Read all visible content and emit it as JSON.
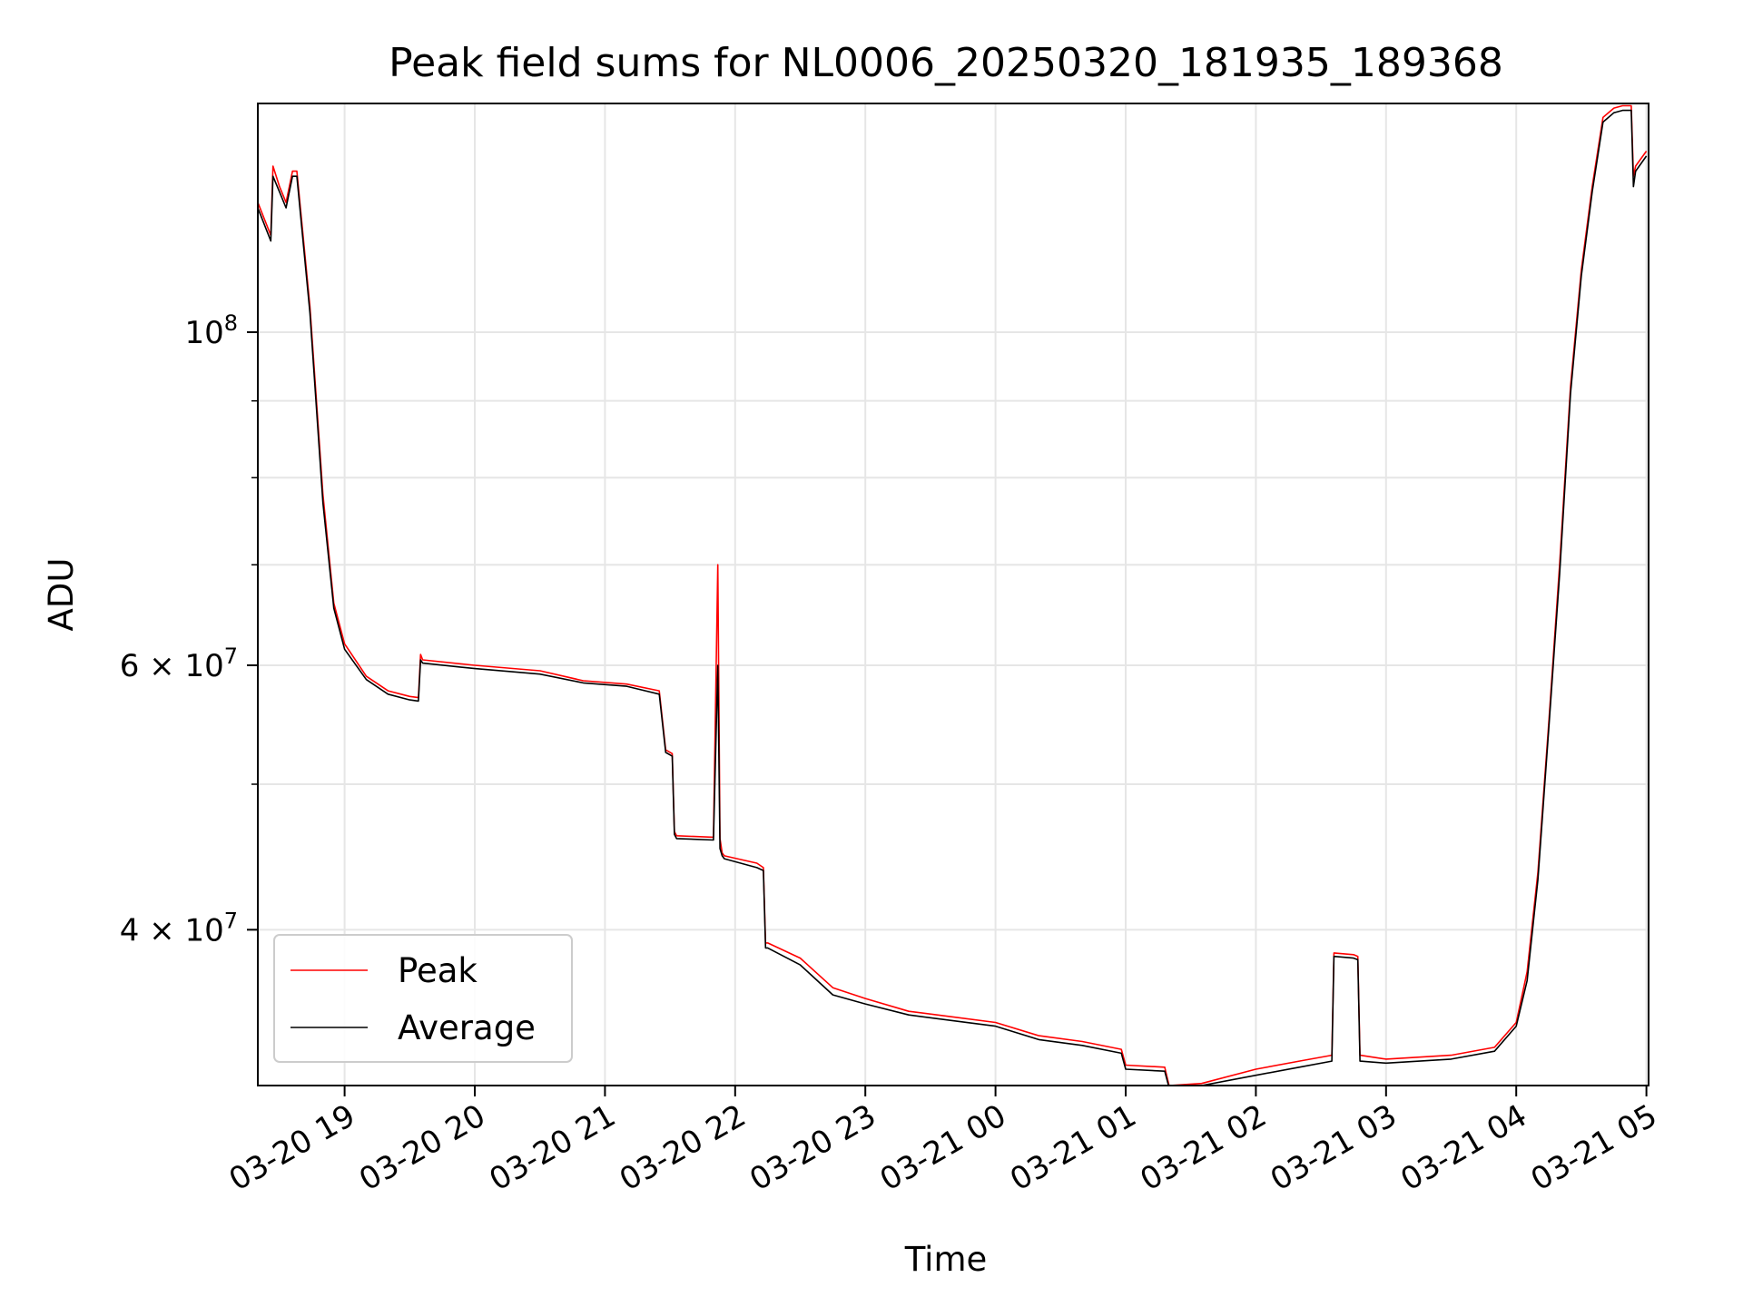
{
  "chart_data": {
    "type": "line",
    "title": "Peak field sums for NL0006_20250320_181935_189368",
    "xlabel": "Time",
    "ylabel": "ADU",
    "yscale": "log",
    "grid": true,
    "legend_position": "lower-left",
    "x_range": [
      "2025-03-20T18:20",
      "2025-03-21T05:01"
    ],
    "ylim": [
      31500000,
      142000000
    ],
    "x_ticks": [
      {
        "t": "2025-03-20T19:00",
        "label": "03-20 19"
      },
      {
        "t": "2025-03-20T20:00",
        "label": "03-20 20"
      },
      {
        "t": "2025-03-20T21:00",
        "label": "03-20 21"
      },
      {
        "t": "2025-03-20T22:00",
        "label": "03-20 22"
      },
      {
        "t": "2025-03-20T23:00",
        "label": "03-20 23"
      },
      {
        "t": "2025-03-21T00:00",
        "label": "03-21 00"
      },
      {
        "t": "2025-03-21T01:00",
        "label": "03-21 01"
      },
      {
        "t": "2025-03-21T02:00",
        "label": "03-21 02"
      },
      {
        "t": "2025-03-21T03:00",
        "label": "03-21 03"
      },
      {
        "t": "2025-03-21T04:00",
        "label": "03-21 04"
      },
      {
        "t": "2025-03-21T05:00",
        "label": "03-21 05"
      }
    ],
    "y_ticks_major": [
      {
        "value": 100000000,
        "base": "10",
        "exp": "8"
      },
      {
        "value": 60000000,
        "base": "6 × 10",
        "exp": "7"
      },
      {
        "value": 40000000,
        "base": "4 × 10",
        "exp": "7"
      }
    ],
    "y_ticks_minor": [
      90000000,
      80000000,
      70000000,
      50000000
    ],
    "colors": {
      "peak": "#ff0000",
      "average": "#000000",
      "grid": "#e6e6e6"
    },
    "series": [
      {
        "name": "Peak",
        "x": [
          "2025-03-20T18:20",
          "2025-03-20T18:26",
          "2025-03-20T18:27",
          "2025-03-20T18:30",
          "2025-03-20T18:33",
          "2025-03-20T18:36",
          "2025-03-20T18:38",
          "2025-03-20T18:44",
          "2025-03-20T18:50",
          "2025-03-20T18:55",
          "2025-03-20T19:00",
          "2025-03-20T19:10",
          "2025-03-20T19:20",
          "2025-03-20T19:30",
          "2025-03-20T19:34",
          "2025-03-20T19:35",
          "2025-03-20T19:36",
          "2025-03-20T20:00",
          "2025-03-20T20:30",
          "2025-03-20T20:50",
          "2025-03-20T21:10",
          "2025-03-20T21:25",
          "2025-03-20T21:28",
          "2025-03-20T21:31",
          "2025-03-20T21:32",
          "2025-03-20T21:33",
          "2025-03-20T21:50",
          "2025-03-20T21:52",
          "2025-03-20T21:53",
          "2025-03-20T21:54",
          "2025-03-20T21:55",
          "2025-03-20T22:10",
          "2025-03-20T22:13",
          "2025-03-20T22:14",
          "2025-03-20T22:15",
          "2025-03-20T22:30",
          "2025-03-20T22:45",
          "2025-03-20T23:00",
          "2025-03-20T23:20",
          "2025-03-20T23:40",
          "2025-03-21T00:00",
          "2025-03-21T00:20",
          "2025-03-21T00:40",
          "2025-03-21T00:58",
          "2025-03-21T01:00",
          "2025-03-21T01:18",
          "2025-03-21T01:20",
          "2025-03-21T01:35",
          "2025-03-21T02:00",
          "2025-03-21T02:20",
          "2025-03-21T02:35",
          "2025-03-21T02:36",
          "2025-03-21T02:45",
          "2025-03-21T02:47",
          "2025-03-21T02:48",
          "2025-03-21T03:00",
          "2025-03-21T03:30",
          "2025-03-21T03:50",
          "2025-03-21T04:00",
          "2025-03-21T04:05",
          "2025-03-21T04:10",
          "2025-03-21T04:15",
          "2025-03-21T04:20",
          "2025-03-21T04:25",
          "2025-03-21T04:30",
          "2025-03-21T04:35",
          "2025-03-21T04:40",
          "2025-03-21T04:45",
          "2025-03-21T04:49",
          "2025-03-21T04:53",
          "2025-03-21T04:54",
          "2025-03-21T04:55",
          "2025-03-21T05:00"
        ],
        "y": [
          122000000,
          116000000,
          129000000,
          125000000,
          122000000,
          128000000,
          128000000,
          104000000,
          78000000,
          66000000,
          62000000,
          59000000,
          57700000,
          57200000,
          57100000,
          61000000,
          60500000,
          60000000,
          59500000,
          58600000,
          58300000,
          57700000,
          52700000,
          52400000,
          46500000,
          46200000,
          46100000,
          70000000,
          46000000,
          45000000,
          44800000,
          44300000,
          44000000,
          39200000,
          39200000,
          38300000,
          36600000,
          36000000,
          35300000,
          35000000,
          34700000,
          34000000,
          33700000,
          33300000,
          32500000,
          32400000,
          31500000,
          31600000,
          32300000,
          32700000,
          33000000,
          38600000,
          38500000,
          38400000,
          33000000,
          32800000,
          33000000,
          33400000,
          34700000,
          37500000,
          43700000,
          55000000,
          70000000,
          92000000,
          110000000,
          125000000,
          139000000,
          141000000,
          141500000,
          141500000,
          127000000,
          129000000,
          132000000
        ]
      },
      {
        "name": "Average",
        "x": [
          "2025-03-20T18:20",
          "2025-03-20T18:26",
          "2025-03-20T18:27",
          "2025-03-20T18:30",
          "2025-03-20T18:33",
          "2025-03-20T18:36",
          "2025-03-20T18:38",
          "2025-03-20T18:44",
          "2025-03-20T18:50",
          "2025-03-20T18:55",
          "2025-03-20T19:00",
          "2025-03-20T19:10",
          "2025-03-20T19:20",
          "2025-03-20T19:30",
          "2025-03-20T19:34",
          "2025-03-20T19:35",
          "2025-03-20T19:36",
          "2025-03-20T20:00",
          "2025-03-20T20:30",
          "2025-03-20T20:50",
          "2025-03-20T21:10",
          "2025-03-20T21:25",
          "2025-03-20T21:28",
          "2025-03-20T21:31",
          "2025-03-20T21:32",
          "2025-03-20T21:33",
          "2025-03-20T21:50",
          "2025-03-20T21:52",
          "2025-03-20T21:53",
          "2025-03-20T21:54",
          "2025-03-20T21:55",
          "2025-03-20T22:10",
          "2025-03-20T22:13",
          "2025-03-20T22:14",
          "2025-03-20T22:15",
          "2025-03-20T22:30",
          "2025-03-20T22:45",
          "2025-03-20T23:00",
          "2025-03-20T23:20",
          "2025-03-20T23:40",
          "2025-03-21T00:00",
          "2025-03-21T00:20",
          "2025-03-21T00:40",
          "2025-03-21T00:58",
          "2025-03-21T01:00",
          "2025-03-21T01:18",
          "2025-03-21T01:20",
          "2025-03-21T01:35",
          "2025-03-21T02:00",
          "2025-03-21T02:20",
          "2025-03-21T02:35",
          "2025-03-21T02:36",
          "2025-03-21T02:45",
          "2025-03-21T02:47",
          "2025-03-21T02:48",
          "2025-03-21T03:00",
          "2025-03-21T03:30",
          "2025-03-21T03:50",
          "2025-03-21T04:00",
          "2025-03-21T04:05",
          "2025-03-21T04:10",
          "2025-03-21T04:15",
          "2025-03-21T04:20",
          "2025-03-21T04:25",
          "2025-03-21T04:30",
          "2025-03-21T04:35",
          "2025-03-21T04:40",
          "2025-03-21T04:45",
          "2025-03-21T04:49",
          "2025-03-21T04:53",
          "2025-03-21T04:54",
          "2025-03-21T04:55",
          "2025-03-21T05:00"
        ],
        "y": [
          121000000,
          115000000,
          127000000,
          124000000,
          121000000,
          127000000,
          127000000,
          103000000,
          77000000,
          65500000,
          61500000,
          58700000,
          57400000,
          56900000,
          56800000,
          60500000,
          60200000,
          59700000,
          59200000,
          58400000,
          58100000,
          57400000,
          52500000,
          52200000,
          46300000,
          46000000,
          45900000,
          60000000,
          45300000,
          44800000,
          44600000,
          44000000,
          43800000,
          38900000,
          38900000,
          37900000,
          36200000,
          35700000,
          35100000,
          34800000,
          34500000,
          33800000,
          33500000,
          33100000,
          32300000,
          32200000,
          31400000,
          31500000,
          32000000,
          32400000,
          32700000,
          38400000,
          38300000,
          38200000,
          32700000,
          32600000,
          32800000,
          33200000,
          34500000,
          37000000,
          43200000,
          54500000,
          69000000,
          91000000,
          109000000,
          124000000,
          138000000,
          140000000,
          140500000,
          140500000,
          125000000,
          128000000,
          131000000
        ]
      }
    ]
  }
}
